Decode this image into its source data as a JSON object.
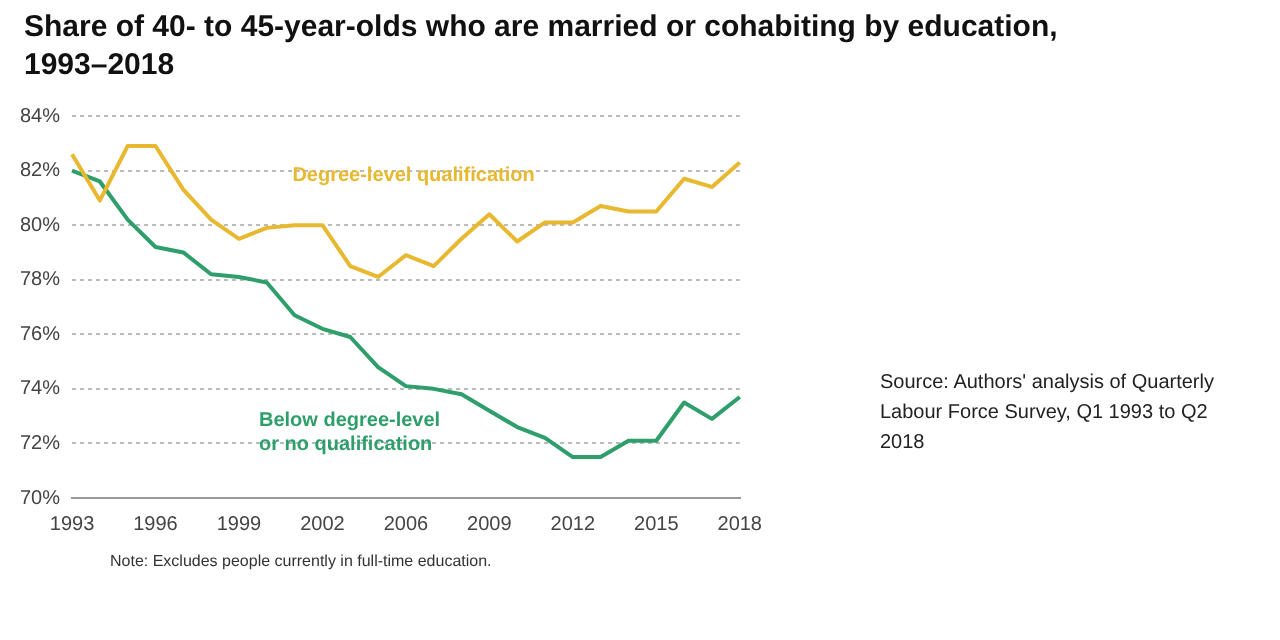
{
  "chart_data": {
    "type": "line",
    "title": "Share of 40- to 45-year-olds who are married or cohabiting by education, 1993–2018",
    "categories": [
      "1993",
      null,
      null,
      "1996",
      null,
      null,
      "1999",
      null,
      null,
      "2002",
      null,
      null,
      "2006",
      null,
      null,
      "2009",
      null,
      null,
      "2012",
      null,
      null,
      "2015",
      null,
      null,
      "2018"
    ],
    "series": [
      {
        "name": "Degree-level qualification",
        "color": "#e8b830",
        "values": [
          82.6,
          80.9,
          82.9,
          82.9,
          81.3,
          80.2,
          79.5,
          79.9,
          80.0,
          80.0,
          78.5,
          78.1,
          78.9,
          78.5,
          79.5,
          80.4,
          79.4,
          80.1,
          80.1,
          80.7,
          80.5,
          80.5,
          81.7,
          81.4,
          82.3
        ]
      },
      {
        "name": "Below degree-level or no qualification",
        "color": "#2e9e6b",
        "values": [
          82.0,
          81.6,
          80.2,
          79.2,
          79.0,
          78.2,
          78.1,
          77.9,
          76.7,
          76.2,
          75.9,
          74.8,
          74.1,
          74.0,
          73.8,
          73.2,
          72.6,
          72.2,
          71.5,
          71.5,
          72.1,
          72.1,
          73.5,
          72.9,
          73.7
        ]
      }
    ],
    "ylim": [
      70,
      84
    ],
    "yticks": [
      {
        "value": 70,
        "label": "70%"
      },
      {
        "value": 72,
        "label": "72%"
      },
      {
        "value": 74,
        "label": "74%"
      },
      {
        "value": 76,
        "label": "76%"
      },
      {
        "value": 78,
        "label": "78%"
      },
      {
        "value": 80,
        "label": "80%"
      },
      {
        "value": 82,
        "label": "82%"
      },
      {
        "value": 84,
        "label": "84%"
      }
    ],
    "grid": "y",
    "legend": false,
    "marker": "none",
    "line_style": "solid",
    "annotations": [
      "Source: Authors' analysis of Quarterly Labour Force Survey, Q1 1993 to Q2 2018",
      "Note: Excludes people currently in full-time education."
    ]
  }
}
